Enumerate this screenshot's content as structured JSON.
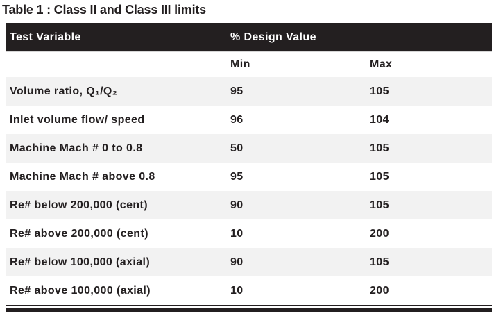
{
  "title": "Table 1 : Class II and Class III limits",
  "colors": {
    "header_bg": "#231f20",
    "header_text": "#ffffff",
    "alt_row_bg": "#f2f2f2",
    "body_text": "#231f20",
    "bottom_rule": "#231f20"
  },
  "table": {
    "columns": [
      "Test Variable",
      "% Design Value"
    ],
    "subcolumns": [
      "Min",
      "Max"
    ],
    "rows": [
      {
        "variable": "Volume ratio, Q₁/Q₂",
        "min": "95",
        "max": "105"
      },
      {
        "variable": "Inlet volume flow/ speed",
        "min": "96",
        "max": "104"
      },
      {
        "variable": "Machine Mach # 0 to 0.8",
        "min": "50",
        "max": "105"
      },
      {
        "variable": "Machine Mach # above 0.8",
        "min": "95",
        "max": "105"
      },
      {
        "variable": "Re# below 200,000 (cent)",
        "min": "90",
        "max": "105"
      },
      {
        "variable": "Re# above 200,000 (cent)",
        "min": "10",
        "max": "200"
      },
      {
        "variable": "Re# below 100,000 (axial)",
        "min": "90",
        "max": "105"
      },
      {
        "variable": "Re# above 100,000 (axial)",
        "min": "10",
        "max": "200"
      }
    ]
  }
}
